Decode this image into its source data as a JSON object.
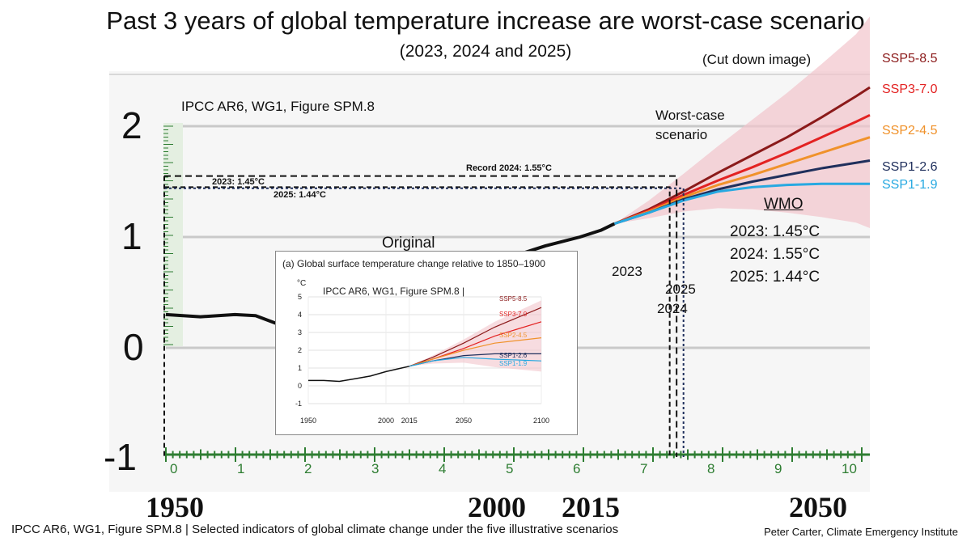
{
  "title": "Past 3 years of global temperature increase are worst-case scenario",
  "subtitle": "(2023, 2024 and 2025)",
  "cut_note": "(Cut down image)",
  "source_label": "IPCC AR6, WG1, Figure SPM.8",
  "worst_case_label": "Worst-case\nscenario",
  "record_label": "Record 2024: 1.55°C",
  "label_2023_line": "2023: 1.45°C",
  "label_2025_line": "2025: 1.44°C",
  "original_label": "Original",
  "year_label_2023": "2023",
  "year_label_2025": "2025",
  "year_label_2024": "2024",
  "wmo": {
    "title": "WMO",
    "lines": [
      "2023: 1.45°C",
      "2024: 1.55°C",
      "2025: 1.44°C"
    ]
  },
  "footer_left": "IPCC AR6, WG1, Figure SPM.8 | Selected indicators of global climate change under the five illustrative scenarios",
  "footer_right": "Peter Carter, Climate Emergency Institute",
  "colors": {
    "ssp585": "#8b1a1a",
    "ssp370": "#e32222",
    "ssp245": "#f0922b",
    "ssp126": "#1f2f5c",
    "ssp119": "#27a9e1",
    "plume": "#f2c4cc",
    "ruler": "#2e7d32"
  },
  "chart_data": [
    {
      "type": "line",
      "title": "",
      "xlabel": "",
      "ylabel": "",
      "x_ticks": [
        "1950",
        "2000",
        "2015",
        "2050"
      ],
      "y_ticks": [
        "2",
        "1",
        "0",
        "-1"
      ],
      "ruler_numbers": [
        "0",
        "1",
        "2",
        "3",
        "4",
        "5",
        "6",
        "7",
        "8",
        "9",
        "10"
      ],
      "ylim": [
        -1,
        2.3
      ],
      "xlim": [
        1950,
        2052
      ],
      "grid": true,
      "series": [
        {
          "name": "",
          "key": "historical",
          "x": [
            1950,
            1955,
            1960,
            1963,
            1966,
            1968,
            1972,
            1976,
            1980,
            1985,
            1990,
            1995,
            2000,
            2005,
            2010,
            2013,
            2015
          ],
          "values": [
            0.3,
            0.28,
            0.3,
            0.29,
            0.22,
            0.12,
            0.2,
            0.22,
            0.32,
            0.42,
            0.55,
            0.68,
            0.82,
            0.92,
            1.0,
            1.06,
            1.12
          ]
        },
        {
          "name": "SSP5-8.5",
          "key": "ssp585",
          "x": [
            2015,
            2020,
            2025,
            2030,
            2035,
            2040,
            2045,
            2050,
            2052
          ],
          "values": [
            1.12,
            1.25,
            1.41,
            1.58,
            1.74,
            1.9,
            2.08,
            2.27,
            2.35
          ]
        },
        {
          "name": "SSP3-7.0",
          "key": "ssp370",
          "x": [
            2015,
            2020,
            2025,
            2030,
            2035,
            2040,
            2045,
            2050,
            2052
          ],
          "values": [
            1.12,
            1.24,
            1.38,
            1.51,
            1.63,
            1.76,
            1.9,
            2.04,
            2.1
          ]
        },
        {
          "name": "SSP2-4.5",
          "key": "ssp245",
          "x": [
            2015,
            2020,
            2025,
            2030,
            2035,
            2040,
            2045,
            2050,
            2052
          ],
          "values": [
            1.12,
            1.23,
            1.36,
            1.47,
            1.56,
            1.66,
            1.76,
            1.86,
            1.9
          ]
        },
        {
          "name": "SSP1-2.6",
          "key": "ssp126",
          "x": [
            2015,
            2020,
            2025,
            2030,
            2035,
            2040,
            2045,
            2050,
            2052
          ],
          "values": [
            1.12,
            1.22,
            1.34,
            1.43,
            1.5,
            1.56,
            1.62,
            1.67,
            1.69
          ]
        },
        {
          "name": "SSP1-1.9",
          "key": "ssp119",
          "x": [
            2015,
            2020,
            2025,
            2030,
            2035,
            2040,
            2045,
            2050,
            2052
          ],
          "values": [
            1.12,
            1.22,
            1.33,
            1.41,
            1.45,
            1.47,
            1.48,
            1.48,
            1.48
          ]
        }
      ],
      "reference_lines": [
        {
          "label": "Record 2024: 1.55°C",
          "year": 2024,
          "value": 1.55
        },
        {
          "label": "2023: 1.45°C",
          "year": 2023,
          "value": 1.45
        },
        {
          "label": "2025: 1.44°C",
          "year": 2025,
          "value": 1.44
        }
      ]
    },
    {
      "type": "line",
      "title": "(a) Global surface temperature change relative to 1850–1900",
      "inner_label": "IPCC AR6, WG1, Figure SPM.8 |",
      "ylabel": "°C",
      "xlabel": "",
      "x_ticks": [
        1950,
        2000,
        2015,
        2050,
        2100
      ],
      "y_ticks": [
        5,
        4,
        3,
        2,
        1,
        0,
        -1
      ],
      "xlim": [
        1950,
        2100
      ],
      "ylim": [
        -1,
        5
      ],
      "grid": true,
      "series": [
        {
          "name": "",
          "key": "historical",
          "x": [
            1950,
            1960,
            1970,
            1980,
            1990,
            2000,
            2010,
            2015
          ],
          "values": [
            0.3,
            0.3,
            0.25,
            0.4,
            0.55,
            0.8,
            1.0,
            1.1
          ]
        },
        {
          "name": "SSP5-8.5",
          "key": "ssp585",
          "x": [
            2015,
            2030,
            2050,
            2070,
            2100
          ],
          "values": [
            1.1,
            1.6,
            2.4,
            3.3,
            4.4
          ]
        },
        {
          "name": "SSP3-7.0",
          "key": "ssp370",
          "x": [
            2015,
            2030,
            2050,
            2070,
            2100
          ],
          "values": [
            1.1,
            1.5,
            2.1,
            2.8,
            3.6
          ]
        },
        {
          "name": "SSP2-4.5",
          "key": "ssp245",
          "x": [
            2015,
            2030,
            2050,
            2070,
            2100
          ],
          "values": [
            1.1,
            1.5,
            2.0,
            2.4,
            2.7
          ]
        },
        {
          "name": "SSP1-2.6",
          "key": "ssp126",
          "x": [
            2015,
            2030,
            2050,
            2070,
            2100
          ],
          "values": [
            1.1,
            1.4,
            1.7,
            1.8,
            1.8
          ]
        },
        {
          "name": "SSP1-1.9",
          "key": "ssp119",
          "x": [
            2015,
            2030,
            2050,
            2070,
            2100
          ],
          "values": [
            1.1,
            1.4,
            1.6,
            1.5,
            1.4
          ]
        }
      ]
    }
  ]
}
